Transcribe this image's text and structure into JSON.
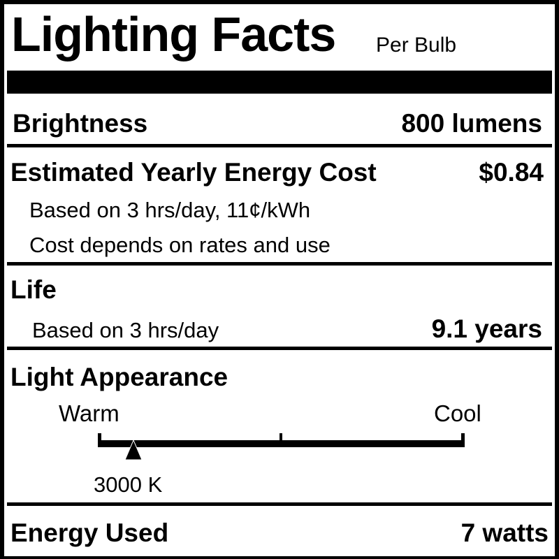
{
  "title": "Lighting Facts",
  "subtitle": "Per Bulb",
  "brightness": {
    "label": "Brightness",
    "value": "800 lumens"
  },
  "energy_cost": {
    "label": "Estimated Yearly Energy Cost",
    "value": "$0.84",
    "note1": "Based on 3 hrs/day, 11¢/kWh",
    "note2": "Cost depends on rates and use"
  },
  "life": {
    "label": "Life",
    "note": "Based on 3 hrs/day",
    "value": "9.1 years"
  },
  "light_appearance": {
    "label": "Light Appearance",
    "warm_label": "Warm",
    "cool_label": "Cool",
    "value": "3000 K",
    "marker_fraction": 0.095
  },
  "energy_used": {
    "label": "Energy Used",
    "value": "7 watts"
  }
}
